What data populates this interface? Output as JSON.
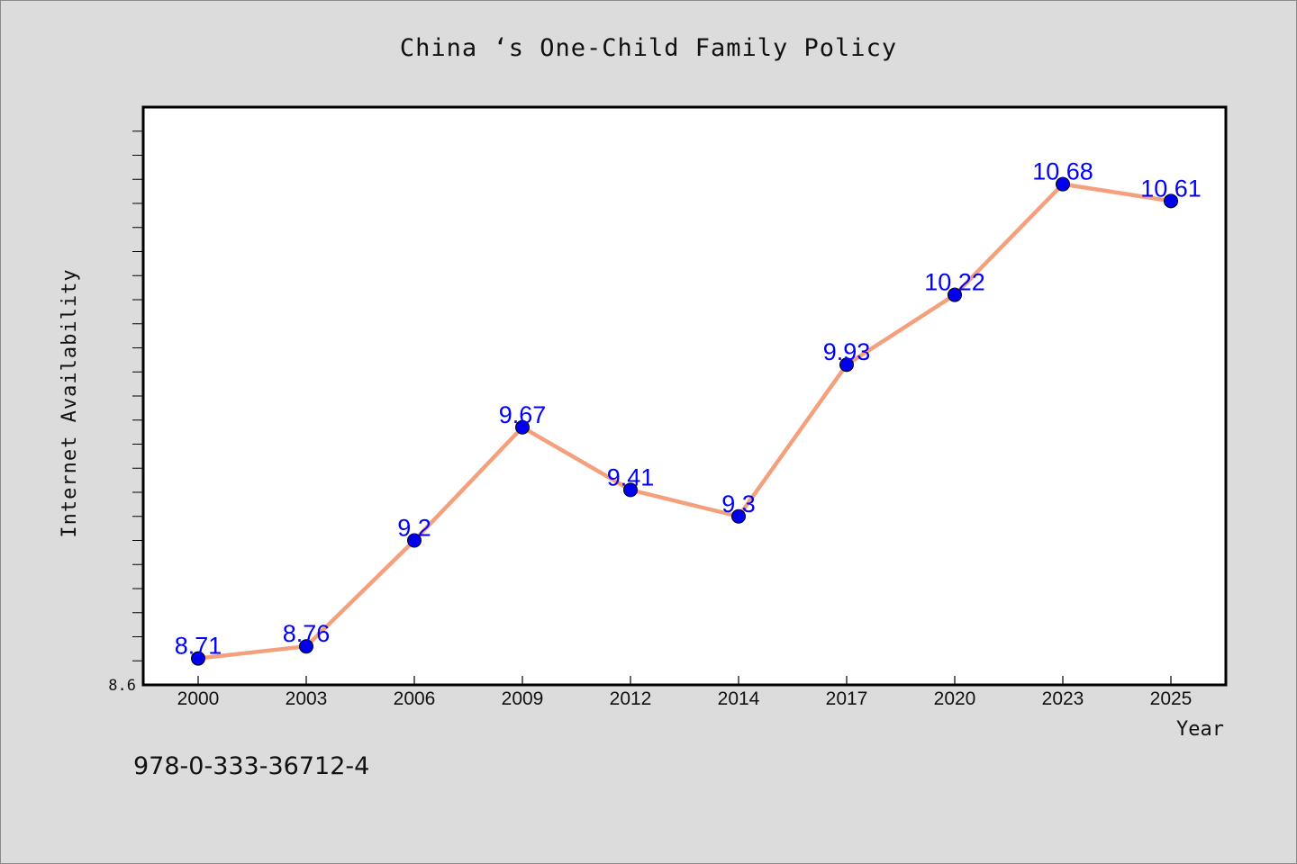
{
  "title": "China ‘s One-Child Family Policy",
  "footer_code": "978-0-333-36712-4",
  "chart_data": {
    "type": "line",
    "title": "China ‘s One-Child Family Policy",
    "xlabel": "Year",
    "ylabel": "Internet Availability",
    "categories": [
      "2000",
      "2003",
      "2006",
      "2009",
      "2012",
      "2014",
      "2017",
      "2020",
      "2023",
      "2025"
    ],
    "values": [
      8.71,
      8.76,
      9.2,
      9.67,
      9.41,
      9.3,
      9.93,
      10.22,
      10.68,
      10.61
    ],
    "data_labels": [
      "8.71",
      "8.76",
      "9.2",
      "9.67",
      "9.41",
      "9.3",
      "9.93",
      "10.22",
      "10.68",
      "10.61"
    ],
    "y_tick_labels": [
      "8.6"
    ],
    "ylim": [
      8.6,
      11.0
    ],
    "grid": false,
    "legend": "none",
    "line_color": "#f4a07c",
    "marker_color": "#0000ee",
    "label_color": "#0000ff"
  }
}
